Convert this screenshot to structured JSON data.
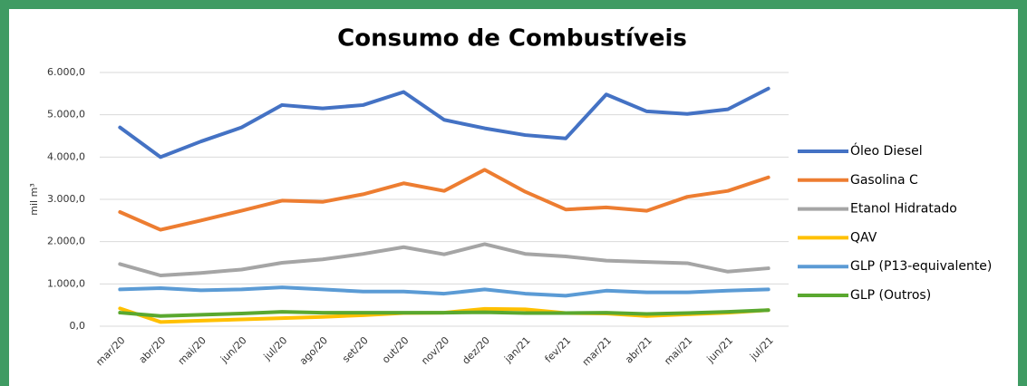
{
  "chart_data": {
    "type": "line",
    "title": "Consumo de Combustíveis",
    "y_label": "mil m³",
    "categories": [
      "mar/20",
      "abr/20",
      "mai/20",
      "jun/20",
      "jul/20",
      "ago/20",
      "set/20",
      "out/20",
      "nov/20",
      "dez/20",
      "jan/21",
      "fev/21",
      "mar/21",
      "abr/21",
      "mai/21",
      "jun/21",
      "jul/21"
    ],
    "series": [
      {
        "name": "Óleo Diesel",
        "color": "#4472c4",
        "values": [
          4700,
          4000,
          4370,
          4700,
          5230,
          5150,
          5230,
          5540,
          4880,
          4680,
          4520,
          4440,
          5480,
          5080,
          5020,
          5130,
          5620
        ]
      },
      {
        "name": "Gasolina C",
        "color": "#ed7d31",
        "values": [
          2700,
          2280,
          2500,
          2730,
          2970,
          2940,
          3120,
          3380,
          3200,
          3700,
          3180,
          2760,
          2810,
          2730,
          3060,
          3200,
          3520
        ]
      },
      {
        "name": "Etanol Hidratado",
        "color": "#a5a5a5",
        "values": [
          1470,
          1200,
          1260,
          1340,
          1500,
          1580,
          1710,
          1870,
          1700,
          1940,
          1710,
          1650,
          1550,
          1520,
          1490,
          1290,
          1370
        ]
      },
      {
        "name": "QAV",
        "color": "#ffc000",
        "values": [
          420,
          100,
          130,
          160,
          190,
          220,
          260,
          310,
          320,
          410,
          400,
          310,
          300,
          240,
          280,
          320,
          380
        ]
      },
      {
        "name": "GLP (P13-equivalente)",
        "color": "#5b9bd5",
        "values": [
          870,
          900,
          850,
          870,
          920,
          870,
          820,
          820,
          770,
          870,
          770,
          720,
          840,
          800,
          800,
          840,
          870
        ]
      },
      {
        "name": "GLP (Outros)",
        "color": "#5aa82f",
        "values": [
          320,
          240,
          270,
          300,
          340,
          320,
          320,
          320,
          320,
          330,
          310,
          310,
          320,
          290,
          310,
          340,
          380
        ]
      }
    ],
    "ylim": [
      0,
      6000
    ],
    "yticks": [
      {
        "value": 0,
        "label": "0,0"
      },
      {
        "value": 1000,
        "label": "1.000,0"
      },
      {
        "value": 2000,
        "label": "2.000,0"
      },
      {
        "value": 3000,
        "label": "3.000,0"
      },
      {
        "value": 4000,
        "label": "4.000,0"
      },
      {
        "value": 5000,
        "label": "5.000,0"
      },
      {
        "value": 6000,
        "label": "6.000,0"
      }
    ],
    "grid": true
  }
}
